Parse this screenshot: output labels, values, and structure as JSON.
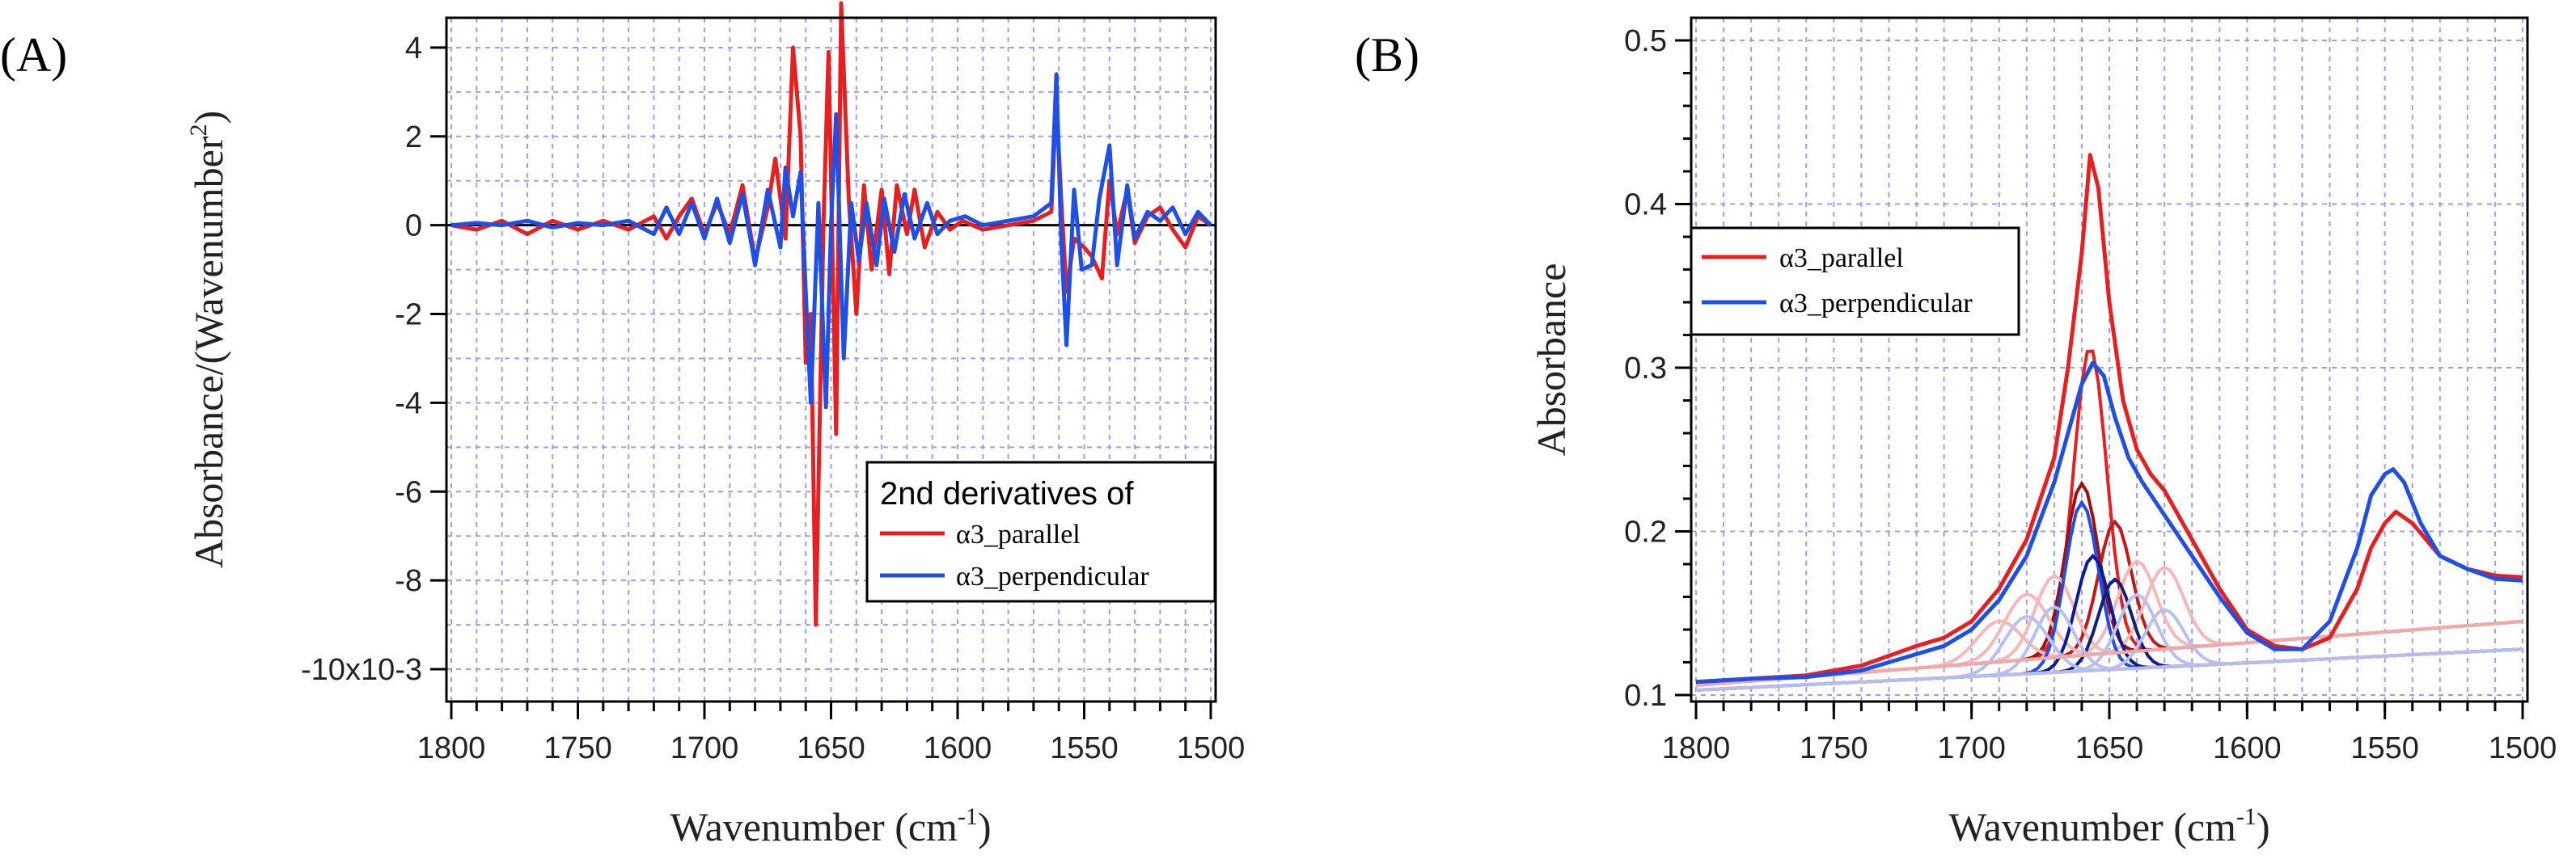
{
  "chart_data": [
    {
      "panel_label": "(A)",
      "type": "line",
      "xlabel": "Wavenumber (cm-1)",
      "xlabel_parts": {
        "base": "Wavenumber (cm",
        "sup": "-1",
        "close": ")"
      },
      "ylabel": "Absorbance/(Wavenumber2)",
      "ylabel_parts": {
        "base": "Absorbance/(Wavenumber",
        "sup": "2",
        "close": ")"
      },
      "xlim": [
        1800,
        1500
      ],
      "ylim": [
        -10,
        5
      ],
      "y_scale_note": "x10-3",
      "xticks": [
        1800,
        1750,
        1700,
        1650,
        1600,
        1550,
        1500
      ],
      "xtick_labels": [
        "1800",
        "1750",
        "1700",
        "1650",
        "1600",
        "1550",
        "1500"
      ],
      "yticks": [
        4,
        2,
        0,
        -2,
        -4,
        -6,
        -8,
        -10
      ],
      "ytick_labels": [
        "4",
        "2",
        "0",
        "-2",
        "-4",
        "-6",
        "-8",
        "-10x10-3"
      ],
      "grid": true,
      "zero_line": true,
      "legend": {
        "title": "2nd derivatives of",
        "position": "lower-right",
        "entries": [
          "α3_parallel",
          "α3_perpendicular"
        ]
      },
      "series": [
        {
          "name": "α3_parallel",
          "color": "#e62020",
          "points": [
            [
              1800,
              0
            ],
            [
              1790,
              -0.1
            ],
            [
              1780,
              0.1
            ],
            [
              1770,
              -0.2
            ],
            [
              1760,
              0.1
            ],
            [
              1750,
              -0.1
            ],
            [
              1740,
              0.1
            ],
            [
              1730,
              -0.1
            ],
            [
              1720,
              0.2
            ],
            [
              1715,
              -0.3
            ],
            [
              1710,
              0.2
            ],
            [
              1705,
              0.6
            ],
            [
              1700,
              -0.2
            ],
            [
              1695,
              0.5
            ],
            [
              1690,
              -0.2
            ],
            [
              1685,
              0.9
            ],
            [
              1680,
              -0.8
            ],
            [
              1675,
              0.4
            ],
            [
              1672,
              1.5
            ],
            [
              1668,
              -0.3
            ],
            [
              1665,
              4.0
            ],
            [
              1662,
              2.0
            ],
            [
              1660,
              -3.1
            ],
            [
              1658,
              -2.0
            ],
            [
              1656,
              -9.0
            ],
            [
              1653,
              0
            ],
            [
              1651,
              3.9
            ],
            [
              1648,
              -4.7
            ],
            [
              1646,
              5.0
            ],
            [
              1643,
              0.6
            ],
            [
              1640,
              -2.0
            ],
            [
              1637,
              0.9
            ],
            [
              1634,
              -1.0
            ],
            [
              1630,
              0.8
            ],
            [
              1627,
              -1.1
            ],
            [
              1624,
              0.9
            ],
            [
              1620,
              -0.2
            ],
            [
              1617,
              0.8
            ],
            [
              1613,
              -0.5
            ],
            [
              1608,
              0.3
            ],
            [
              1603,
              -0.1
            ],
            [
              1598,
              0.1
            ],
            [
              1590,
              -0.1
            ],
            [
              1580,
              0
            ],
            [
              1570,
              0.1
            ],
            [
              1563,
              0.3
            ],
            [
              1561,
              2.8
            ],
            [
              1559,
              0.5
            ],
            [
              1557,
              -1.5
            ],
            [
              1554,
              -0.3
            ],
            [
              1550,
              -0.5
            ],
            [
              1547,
              -0.7
            ],
            [
              1543,
              -1.2
            ],
            [
              1540,
              1.0
            ],
            [
              1537,
              -0.2
            ],
            [
              1533,
              0.8
            ],
            [
              1530,
              -0.4
            ],
            [
              1525,
              0.2
            ],
            [
              1520,
              0.4
            ],
            [
              1515,
              -0.1
            ],
            [
              1510,
              -0.5
            ],
            [
              1505,
              0.2
            ],
            [
              1500,
              0
            ]
          ]
        },
        {
          "name": "α3_perpendicular",
          "color": "#1f50e6",
          "points": [
            [
              1800,
              0
            ],
            [
              1790,
              0.05
            ],
            [
              1780,
              0
            ],
            [
              1770,
              0.1
            ],
            [
              1760,
              -0.05
            ],
            [
              1750,
              0.05
            ],
            [
              1740,
              0
            ],
            [
              1730,
              0.1
            ],
            [
              1720,
              -0.2
            ],
            [
              1715,
              0.4
            ],
            [
              1710,
              -0.2
            ],
            [
              1705,
              0.5
            ],
            [
              1700,
              -0.3
            ],
            [
              1695,
              0.6
            ],
            [
              1690,
              -0.4
            ],
            [
              1685,
              0.7
            ],
            [
              1680,
              -0.9
            ],
            [
              1675,
              0.8
            ],
            [
              1670,
              -0.5
            ],
            [
              1668,
              1.3
            ],
            [
              1665,
              0.2
            ],
            [
              1662,
              1.2
            ],
            [
              1660,
              -1.5
            ],
            [
              1658,
              -4.0
            ],
            [
              1655,
              0.5
            ],
            [
              1652,
              -4.1
            ],
            [
              1650,
              0
            ],
            [
              1648,
              2.5
            ],
            [
              1645,
              -3.0
            ],
            [
              1642,
              0.5
            ],
            [
              1639,
              -0.8
            ],
            [
              1636,
              0.5
            ],
            [
              1632,
              -0.9
            ],
            [
              1629,
              0.6
            ],
            [
              1625,
              -0.6
            ],
            [
              1621,
              0.7
            ],
            [
              1617,
              -0.3
            ],
            [
              1612,
              0.5
            ],
            [
              1608,
              -0.2
            ],
            [
              1603,
              0.1
            ],
            [
              1597,
              0.2
            ],
            [
              1590,
              0
            ],
            [
              1580,
              0.1
            ],
            [
              1570,
              0.2
            ],
            [
              1563,
              0.5
            ],
            [
              1561,
              3.4
            ],
            [
              1559,
              -0.4
            ],
            [
              1557,
              -2.7
            ],
            [
              1554,
              0.8
            ],
            [
              1551,
              -1.0
            ],
            [
              1547,
              -0.9
            ],
            [
              1544,
              0.6
            ],
            [
              1540,
              1.8
            ],
            [
              1537,
              -0.9
            ],
            [
              1533,
              0.9
            ],
            [
              1530,
              -0.3
            ],
            [
              1525,
              0.3
            ],
            [
              1520,
              0.1
            ],
            [
              1515,
              0.4
            ],
            [
              1510,
              -0.2
            ],
            [
              1505,
              0.3
            ],
            [
              1500,
              0
            ]
          ]
        }
      ]
    },
    {
      "panel_label": "(B)",
      "type": "line",
      "xlabel": "Wavenumber (cm-1)",
      "xlabel_parts": {
        "base": "Wavenumber (cm",
        "sup": "-1",
        "close": ")"
      },
      "ylabel": "Absorbance",
      "xlim": [
        1800,
        1500
      ],
      "ylim": [
        0.1,
        0.5
      ],
      "xticks": [
        1800,
        1750,
        1700,
        1650,
        1600,
        1550,
        1500
      ],
      "xtick_labels": [
        "1800",
        "1750",
        "1700",
        "1650",
        "1600",
        "1550",
        "1500"
      ],
      "yticks": [
        0.1,
        0.2,
        0.3,
        0.4,
        0.5
      ],
      "ytick_labels": [
        "0.1",
        "0.2",
        "0.3",
        "0.4",
        "0.5"
      ],
      "grid": true,
      "legend": {
        "position": "upper-left",
        "entries": [
          "α3_parallel",
          "α3_perpendicular"
        ]
      },
      "series": [
        {
          "name": "α3_parallel",
          "color": "#e62020",
          "points": [
            [
              1800,
              0.108
            ],
            [
              1780,
              0.11
            ],
            [
              1760,
              0.112
            ],
            [
              1740,
              0.118
            ],
            [
              1720,
              0.13
            ],
            [
              1710,
              0.135
            ],
            [
              1700,
              0.145
            ],
            [
              1690,
              0.165
            ],
            [
              1680,
              0.195
            ],
            [
              1670,
              0.245
            ],
            [
              1665,
              0.3
            ],
            [
              1660,
              0.37
            ],
            [
              1657,
              0.43
            ],
            [
              1654,
              0.41
            ],
            [
              1650,
              0.34
            ],
            [
              1645,
              0.28
            ],
            [
              1640,
              0.25
            ],
            [
              1635,
              0.235
            ],
            [
              1630,
              0.225
            ],
            [
              1620,
              0.195
            ],
            [
              1610,
              0.165
            ],
            [
              1600,
              0.14
            ],
            [
              1590,
              0.13
            ],
            [
              1580,
              0.128
            ],
            [
              1570,
              0.135
            ],
            [
              1560,
              0.165
            ],
            [
              1555,
              0.19
            ],
            [
              1550,
              0.205
            ],
            [
              1546,
              0.212
            ],
            [
              1540,
              0.205
            ],
            [
              1530,
              0.185
            ],
            [
              1520,
              0.177
            ],
            [
              1510,
              0.173
            ],
            [
              1500,
              0.172
            ]
          ]
        },
        {
          "name": "α3_perpendicular",
          "color": "#1f50e6",
          "points": [
            [
              1800,
              0.108
            ],
            [
              1780,
              0.11
            ],
            [
              1760,
              0.111
            ],
            [
              1740,
              0.115
            ],
            [
              1720,
              0.125
            ],
            [
              1710,
              0.13
            ],
            [
              1700,
              0.14
            ],
            [
              1690,
              0.158
            ],
            [
              1680,
              0.185
            ],
            [
              1670,
              0.23
            ],
            [
              1665,
              0.26
            ],
            [
              1660,
              0.29
            ],
            [
              1656,
              0.303
            ],
            [
              1652,
              0.295
            ],
            [
              1648,
              0.27
            ],
            [
              1643,
              0.245
            ],
            [
              1638,
              0.23
            ],
            [
              1632,
              0.215
            ],
            [
              1620,
              0.185
            ],
            [
              1610,
              0.16
            ],
            [
              1600,
              0.138
            ],
            [
              1590,
              0.128
            ],
            [
              1580,
              0.128
            ],
            [
              1570,
              0.145
            ],
            [
              1560,
              0.19
            ],
            [
              1555,
              0.222
            ],
            [
              1550,
              0.235
            ],
            [
              1547,
              0.238
            ],
            [
              1543,
              0.23
            ],
            [
              1537,
              0.205
            ],
            [
              1530,
              0.185
            ],
            [
              1520,
              0.177
            ],
            [
              1510,
              0.171
            ],
            [
              1500,
              0.17
            ]
          ]
        }
      ],
      "baselines": [
        {
          "name": "baseline-parallel",
          "color": "#f0a8a8",
          "points": [
            [
              1800,
              0.106
            ],
            [
              1500,
              0.145
            ]
          ]
        },
        {
          "name": "baseline-perpendicular",
          "color": "#b8bce8",
          "points": [
            [
              1800,
              0.103
            ],
            [
              1500,
              0.128
            ]
          ]
        }
      ],
      "components": [
        {
          "center": 1657,
          "amplitude": 0.188,
          "width": 6,
          "baseline_start": 0.106,
          "baseline_end": 0.145,
          "color": "#e62020"
        },
        {
          "center": 1660,
          "amplitude": 0.105,
          "width": 6,
          "baseline_start": 0.106,
          "baseline_end": 0.145,
          "color": "#a01010"
        },
        {
          "center": 1648,
          "amplitude": 0.08,
          "width": 6,
          "baseline_start": 0.106,
          "baseline_end": 0.145,
          "color": "#c41818"
        },
        {
          "center": 1640,
          "amplitude": 0.055,
          "width": 7,
          "baseline_start": 0.106,
          "baseline_end": 0.145,
          "color": "#f4b8b8"
        },
        {
          "center": 1630,
          "amplitude": 0.05,
          "width": 7,
          "baseline_start": 0.106,
          "baseline_end": 0.145,
          "color": "#f4b8b8"
        },
        {
          "center": 1680,
          "amplitude": 0.04,
          "width": 8,
          "baseline_start": 0.106,
          "baseline_end": 0.145,
          "color": "#f4b8b8"
        },
        {
          "center": 1670,
          "amplitude": 0.05,
          "width": 7,
          "baseline_start": 0.106,
          "baseline_end": 0.145,
          "color": "#f4b8b8"
        },
        {
          "center": 1690,
          "amplitude": 0.025,
          "width": 8,
          "baseline_start": 0.106,
          "baseline_end": 0.145,
          "color": "#f4b8b8"
        },
        {
          "center": 1660,
          "amplitude": 0.103,
          "width": 6,
          "baseline_start": 0.103,
          "baseline_end": 0.128,
          "color": "#1f50e6"
        },
        {
          "center": 1656,
          "amplitude": 0.07,
          "width": 6,
          "baseline_start": 0.103,
          "baseline_end": 0.128,
          "color": "#0a1a9c"
        },
        {
          "center": 1648,
          "amplitude": 0.055,
          "width": 6,
          "baseline_start": 0.103,
          "baseline_end": 0.128,
          "color": "#10207c"
        },
        {
          "center": 1640,
          "amplitude": 0.045,
          "width": 7,
          "baseline_start": 0.103,
          "baseline_end": 0.128,
          "color": "#b8c0f0"
        },
        {
          "center": 1630,
          "amplitude": 0.035,
          "width": 7,
          "baseline_start": 0.103,
          "baseline_end": 0.128,
          "color": "#b8c0f0"
        },
        {
          "center": 1680,
          "amplitude": 0.035,
          "width": 8,
          "baseline_start": 0.103,
          "baseline_end": 0.128,
          "color": "#b8c0f0"
        },
        {
          "center": 1670,
          "amplitude": 0.04,
          "width": 7,
          "baseline_start": 0.103,
          "baseline_end": 0.128,
          "color": "#b8c0f0"
        }
      ]
    }
  ]
}
